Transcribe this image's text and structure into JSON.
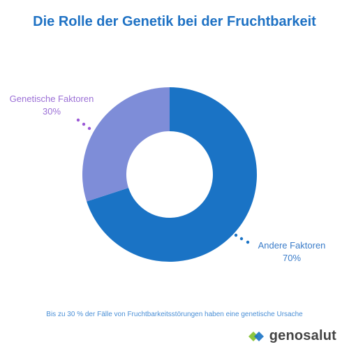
{
  "chart_data": {
    "type": "pie",
    "title": "Die Rolle der Genetik bei der Fruchtbarkeit",
    "donut": true,
    "slices": [
      {
        "label": "Andere Faktoren",
        "percent_label": "70%",
        "value": 70,
        "color": "#1a73c5"
      },
      {
        "label": "Genetische Faktoren",
        "percent_label": "30%",
        "value": 30,
        "color": "#7e8dd8"
      }
    ],
    "footnote": "Bis zu 30 % der Fälle von Fruchtbarkeitsstörungen haben eine genetische Ursache"
  },
  "brand": {
    "name": "genosalut",
    "logo_icon": "genosalut-logo-icon",
    "colors": {
      "green": "#8cc63f",
      "blue": "#1a73c5"
    }
  },
  "colors": {
    "title": "#1f72c4",
    "label_andere": "#3a7cc9",
    "label_genetisch": "#9b6fd6",
    "dots_andere": "#1a73c5",
    "dots_genetisch": "#9b59d6"
  }
}
